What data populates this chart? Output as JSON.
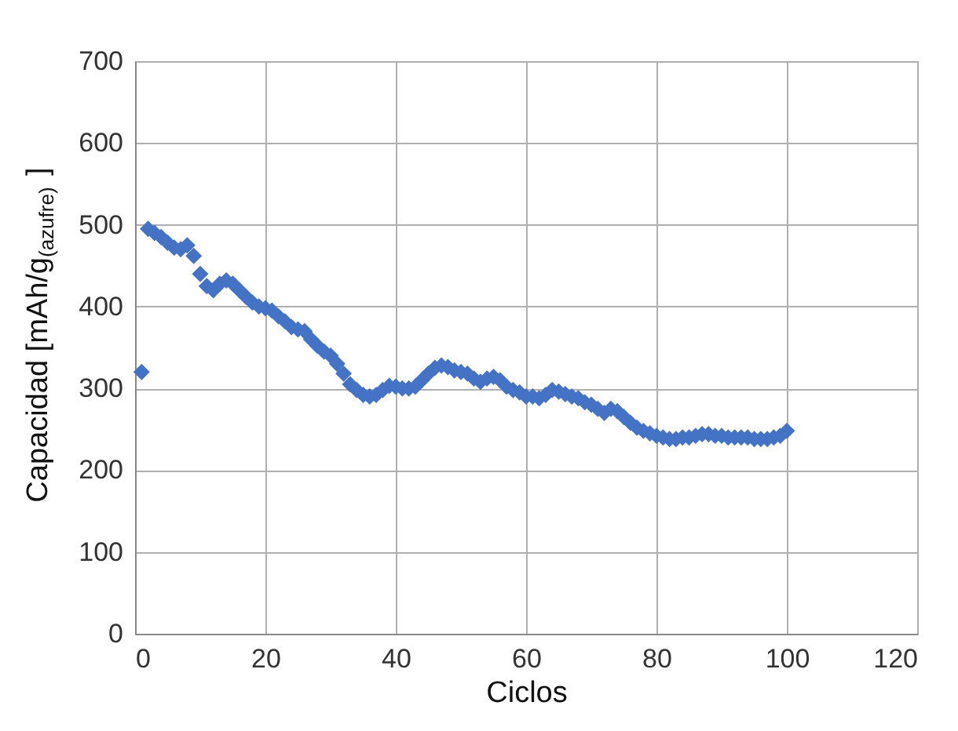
{
  "chart_data": {
    "type": "scatter",
    "xlabel": "Ciclos",
    "ylabel": "Capacidad [mAh/g$_{(azufre)}$]",
    "x": [
      1,
      2,
      3,
      4,
      5,
      6,
      7,
      8,
      9,
      10,
      11,
      12,
      13,
      14,
      15,
      16,
      17,
      18,
      19,
      20,
      21,
      22,
      23,
      24,
      25,
      26,
      27,
      28,
      29,
      30,
      31,
      32,
      33,
      34,
      35,
      36,
      37,
      38,
      39,
      40,
      41,
      42,
      43,
      44,
      45,
      46,
      47,
      48,
      49,
      50,
      51,
      52,
      53,
      54,
      55,
      56,
      57,
      58,
      59,
      60,
      61,
      62,
      63,
      64,
      65,
      66,
      67,
      68,
      69,
      70,
      71,
      72,
      73,
      74,
      75,
      76,
      77,
      78,
      79,
      80,
      81,
      82,
      83,
      84,
      85,
      86,
      87,
      88,
      89,
      90,
      91,
      92,
      93,
      94,
      95,
      96,
      97,
      98,
      99,
      100
    ],
    "series": [
      {
        "color": "#4472c4",
        "values": [
          320,
          495,
          490,
          485,
          478,
          472,
          470,
          475,
          462,
          440,
          425,
          420,
          428,
          432,
          428,
          420,
          412,
          405,
          400,
          398,
          395,
          388,
          382,
          375,
          372,
          370,
          360,
          352,
          345,
          340,
          330,
          318,
          305,
          298,
          292,
          290,
          292,
          298,
          303,
          302,
          300,
          300,
          302,
          310,
          318,
          325,
          328,
          326,
          322,
          320,
          318,
          312,
          308,
          312,
          314,
          310,
          302,
          298,
          295,
          290,
          290,
          288,
          292,
          298,
          296,
          293,
          290,
          288,
          283,
          280,
          275,
          270,
          275,
          272,
          265,
          258,
          252,
          248,
          245,
          242,
          240,
          238,
          238,
          240,
          240,
          242,
          244,
          244,
          242,
          242,
          240,
          240,
          240,
          240,
          238,
          238,
          238,
          240,
          242,
          248
        ]
      }
    ],
    "xlim": [
      0,
      120
    ],
    "xticks": [
      0,
      20,
      40,
      60,
      80,
      100,
      120
    ],
    "ylim": [
      0,
      700
    ],
    "yticks": [
      0,
      100,
      200,
      300,
      400,
      500,
      600,
      700
    ],
    "grid": true,
    "marker": "diamond"
  }
}
